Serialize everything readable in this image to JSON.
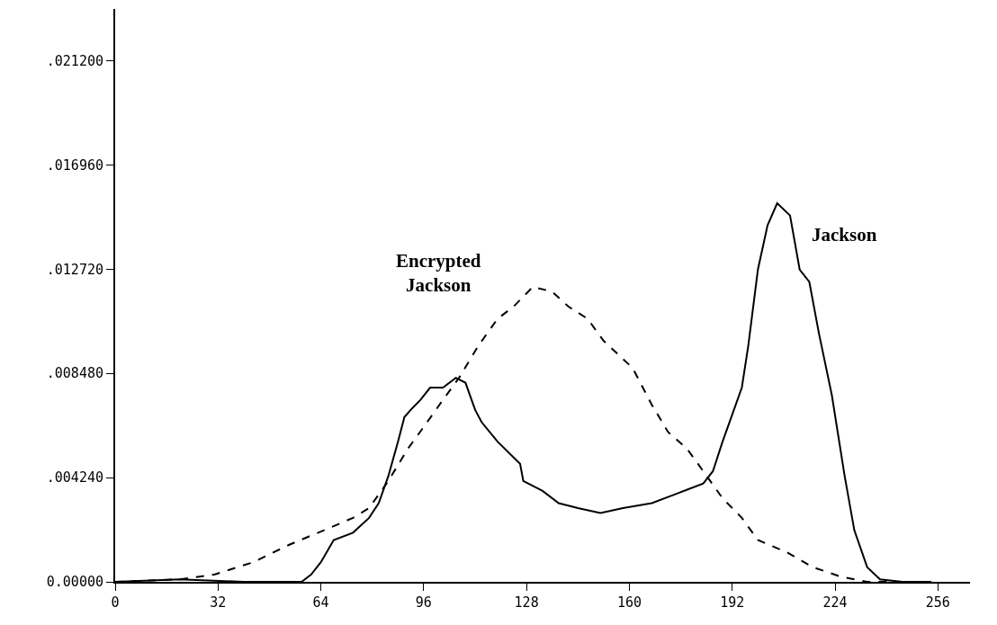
{
  "chart_data": {
    "type": "line",
    "xlim": [
      0,
      266
    ],
    "ylim": [
      0,
      0.0233
    ],
    "xticks": [
      0,
      32,
      64,
      96,
      128,
      160,
      192,
      224,
      256
    ],
    "yticks": [
      {
        "value": 0,
        "label": "0.00000"
      },
      {
        "value": 0.00424,
        "label": ".004240"
      },
      {
        "value": 0.00848,
        "label": ".008480"
      },
      {
        "value": 0.01272,
        "label": ".012720"
      },
      {
        "value": 0.01696,
        "label": ".016960"
      },
      {
        "value": 0.0212,
        "label": ".021200"
      }
    ],
    "legend": false,
    "marker": "none",
    "series": [
      {
        "name": "Jackson",
        "color": "#000000",
        "line_style": "solid",
        "x": [
          0,
          20,
          40,
          58,
          61,
          64,
          68,
          74,
          79,
          82,
          85,
          88,
          90,
          92,
          95,
          98,
          102,
          106,
          109,
          112,
          114,
          119,
          126,
          127,
          133,
          138,
          144,
          151,
          158,
          167,
          175,
          183,
          186,
          189,
          192,
          195,
          197,
          200,
          203,
          206,
          210,
          213,
          216,
          219,
          223,
          227,
          230,
          234,
          238,
          245,
          254
        ],
        "values": [
          0,
          0.0001,
          0,
          0,
          0.0003,
          0.0008,
          0.0017,
          0.002,
          0.0026,
          0.0032,
          0.0043,
          0.0057,
          0.0067,
          0.007,
          0.0074,
          0.0079,
          0.0079,
          0.0083,
          0.0081,
          0.007,
          0.0065,
          0.0057,
          0.0048,
          0.0041,
          0.0037,
          0.0032,
          0.003,
          0.0028,
          0.003,
          0.0032,
          0.0036,
          0.004,
          0.0045,
          0.0057,
          0.0068,
          0.0079,
          0.0096,
          0.0127,
          0.0145,
          0.0154,
          0.0149,
          0.0127,
          0.0122,
          0.0101,
          0.0076,
          0.0043,
          0.0021,
          0.0006,
          0.0001,
          0,
          0
        ]
      },
      {
        "name": "Encrypted Jackson",
        "color": "#000000",
        "line_style": "dashed",
        "x": [
          0,
          20,
          31,
          43,
          54,
          65,
          74,
          79,
          85,
          91,
          96,
          102,
          107,
          113,
          119,
          124,
          130,
          136,
          141,
          147,
          152,
          161,
          167,
          172,
          178,
          183,
          189,
          195,
          200,
          209,
          217,
          226,
          234,
          245
        ],
        "values": [
          0,
          0.0001,
          0.0003,
          0.0008,
          0.0015,
          0.0021,
          0.0026,
          0.003,
          0.0041,
          0.0054,
          0.0063,
          0.0074,
          0.0083,
          0.0096,
          0.0107,
          0.0112,
          0.012,
          0.0118,
          0.0112,
          0.0107,
          0.0098,
          0.0087,
          0.0072,
          0.0061,
          0.0054,
          0.0045,
          0.0034,
          0.0026,
          0.0017,
          0.0012,
          0.0006,
          0.0002,
          0,
          0
        ]
      }
    ]
  }
}
